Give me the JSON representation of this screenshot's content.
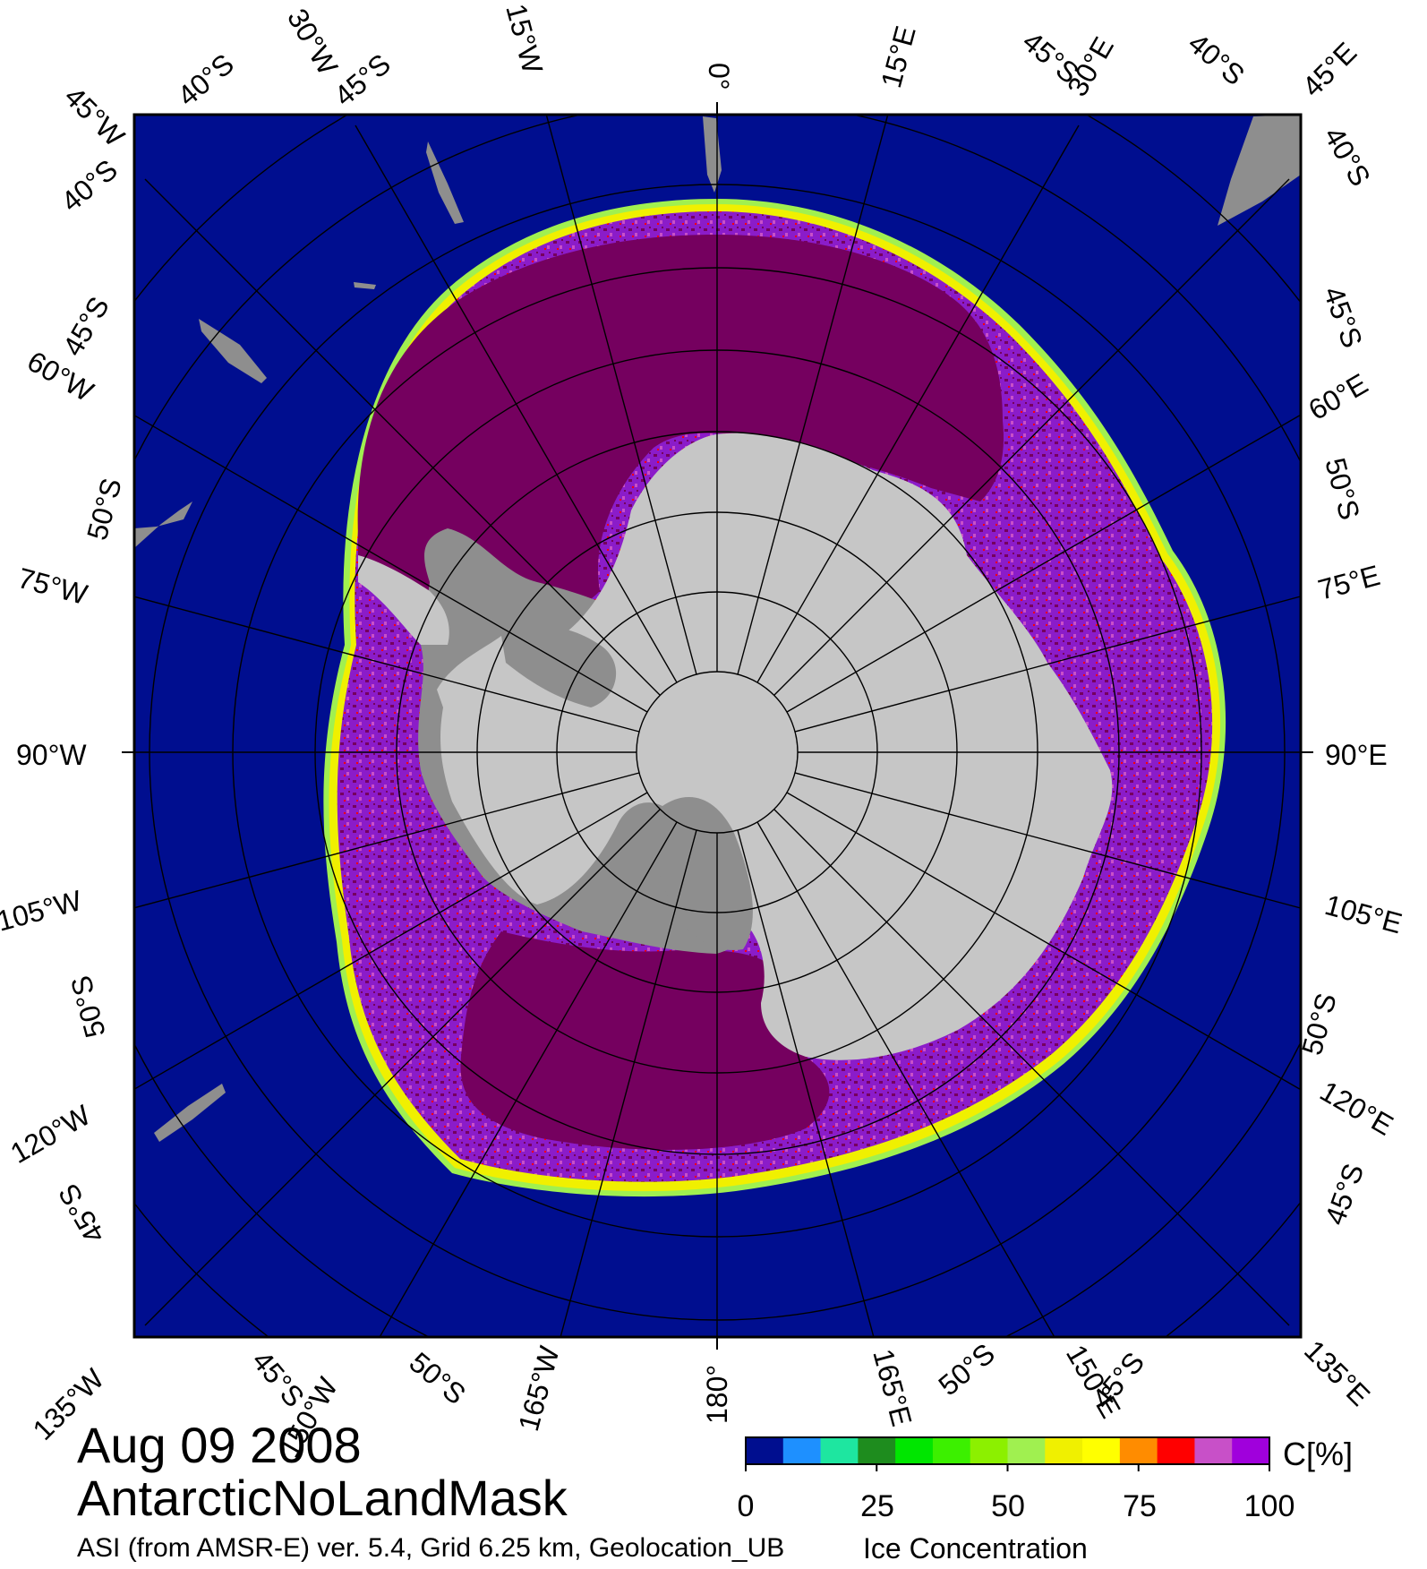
{
  "map": {
    "date": "Aug 09 2008",
    "region": "AntarcticNoLandMask",
    "source": "ASI (from AMSR-E) ver. 5.4,  Grid 6.25 km, Geolocation_UB",
    "product": "Ice Concentration",
    "colors": {
      "ocean": "#000e8f",
      "ice_high": "#75005f",
      "ice_mid": "#8b1cc9",
      "land_ice": "#c6c6c6",
      "land_rock": "#8e8e8e",
      "grid_line": "#000000"
    },
    "labels": {
      "top": [
        "40°S",
        "45°W",
        "30°W",
        "45°S",
        "15°W",
        "0°",
        "15°E",
        "45°S",
        "30°E",
        "40°S",
        "45°E"
      ],
      "left": [
        "40°S",
        "45°S",
        "60°W",
        "50°S",
        "75°W",
        "90°W",
        "105°W",
        "50°S",
        "120°W",
        "45°S"
      ],
      "right": [
        "40°S",
        "45°S",
        "60°E",
        "50°S",
        "75°E",
        "90°E",
        "105°E",
        "50°S",
        "120°E",
        "45°S"
      ],
      "bottom": [
        "135°W",
        "45°S",
        "150°W",
        "50°S",
        "165°W",
        "180°",
        "165°E",
        "50°S",
        "150°E",
        "45°S",
        "135°E"
      ]
    }
  },
  "colorbar": {
    "unit": "C[%]",
    "ticks": [
      "0",
      "25",
      "50",
      "75",
      "100"
    ],
    "colors": [
      "#000e8f",
      "#1e90ff",
      "#1ee6a0",
      "#1e8c1e",
      "#00e600",
      "#3cf000",
      "#8cf000",
      "#a0f050",
      "#f0f000",
      "#ffff00",
      "#ff8c00",
      "#ff0000",
      "#c850c8",
      "#a000dc"
    ]
  }
}
